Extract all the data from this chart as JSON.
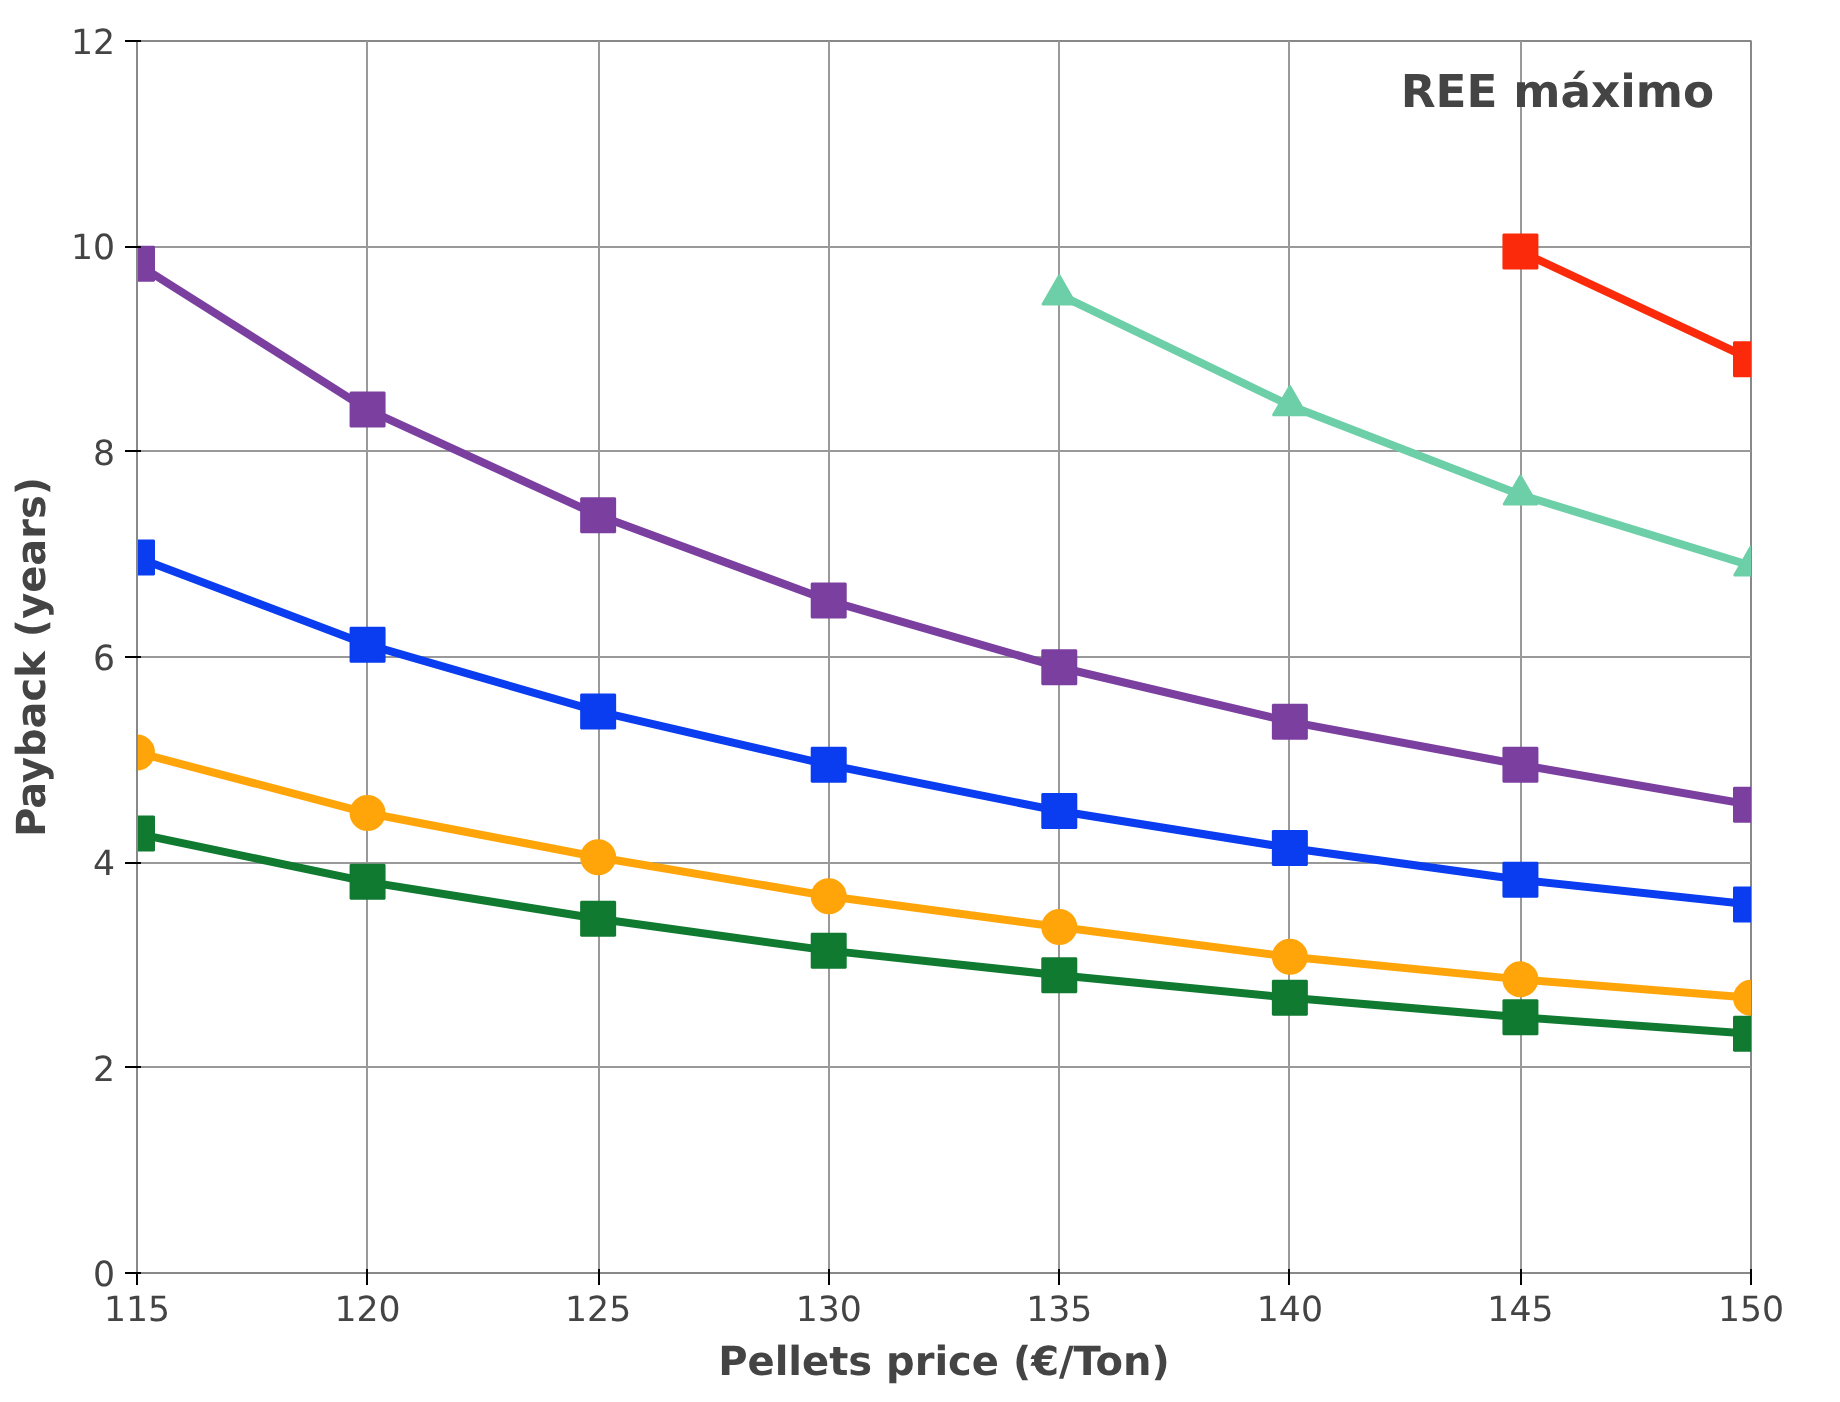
{
  "chart_data": {
    "type": "line",
    "xlabel": "Pellets price (€/Ton)",
    "ylabel": "Payback (years)",
    "annotations": [
      "REE máximo"
    ],
    "x": [
      115,
      120,
      125,
      130,
      135,
      140,
      145,
      150
    ],
    "xlim": [
      115,
      150
    ],
    "xticks": [
      115,
      120,
      125,
      130,
      135,
      140,
      145,
      150
    ],
    "ylim": [
      0,
      12
    ],
    "yticks": [
      0,
      2,
      4,
      6,
      8,
      10,
      12
    ],
    "grid": true,
    "series": [
      {
        "color": "#7b3fa0",
        "marker": "square",
        "values": [
          9.83,
          8.41,
          7.38,
          6.55,
          5.9,
          5.37,
          4.95,
          4.56
        ]
      },
      {
        "color": "#0a3cf0",
        "marker": "square",
        "values": [
          6.97,
          6.12,
          5.47,
          4.95,
          4.5,
          4.14,
          3.83,
          3.59
        ]
      },
      {
        "color": "#ffa50a",
        "marker": "circle",
        "values": [
          5.07,
          4.48,
          4.05,
          3.67,
          3.37,
          3.08,
          2.86,
          2.68
        ]
      },
      {
        "color": "#0f7a30",
        "marker": "square",
        "values": [
          4.28,
          3.81,
          3.45,
          3.14,
          2.9,
          2.68,
          2.49,
          2.33
        ]
      },
      {
        "color": "#6dcfa8",
        "marker": "triangle",
        "values": [
          null,
          null,
          null,
          null,
          9.53,
          8.45,
          7.58,
          6.89
        ]
      },
      {
        "color": "#fa2a0a",
        "marker": "square",
        "values": [
          null,
          null,
          null,
          null,
          null,
          null,
          9.95,
          8.9
        ]
      }
    ]
  }
}
